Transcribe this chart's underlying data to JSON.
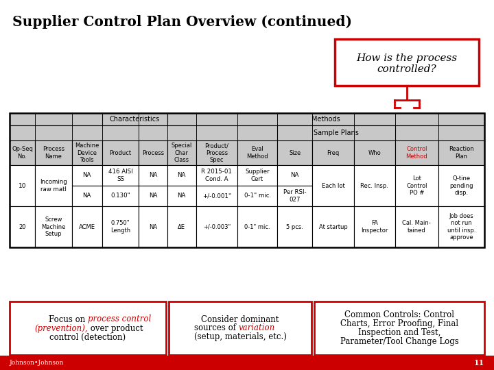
{
  "title": "Supplier Control Plan Overview (continued)",
  "bg_color": "#ffffff",
  "red_color": "#cc0000",
  "table_bg": "#c8c8c8",
  "white": "#ffffff",
  "black": "#000000",
  "callout_text_line1": "How is the process",
  "callout_text_line2": "controlled?",
  "footer_text": "Johnson•Johnson",
  "page_number": "11",
  "bottom_bar_color": "#cc0000",
  "header_row1_chars": "Characteristics",
  "header_row1_methods": "Methods",
  "header_row2_sample": "Sample Plans",
  "col_headers": [
    "Op-Seq\nNo.",
    "Process\nName",
    "Machine\nDevice\nTools",
    "Product",
    "Process",
    "Special\nChar\nClass",
    "Product/\nProcess\nSpec",
    "Eval\nMethod",
    "Size",
    "Freq",
    "Who",
    "Control\nMethod",
    "Reaction\nPlan"
  ],
  "col_control_idx": 11,
  "row_op10_col01": [
    "10",
    "Incoming\nraw matl"
  ],
  "row_op10_subA": [
    "NA",
    "416 AISI\nSS",
    "NA",
    "NA",
    "R 2015-01\nCond. A",
    "Supplier\nCert"
  ],
  "row_op10_subB": [
    "NA",
    "0.130\"",
    "NA",
    "NA",
    "+/-0.001\"",
    "0-1\" mic."
  ],
  "row_op10_right": [
    "NA",
    "Each lot",
    "Rec. Insp.",
    "Lot\nControl\nPO #",
    "Q-tine\npending\ndisp."
  ],
  "row_op10_sizeB": "Per RSI-\n027",
  "row_op20": [
    "20",
    "Screw\nMachine\nSetup",
    "ACME",
    "0.750\"\nLength",
    "NA",
    "ΔE",
    "+/-0.003\"",
    "0-1\" mic.",
    "5 pcs.",
    "At startup",
    "FA\nInspector",
    "Cal. Main-\ntained",
    "Job does\nnot run\nuntil insp.\napprove"
  ],
  "box1_normal1": "Focus on ",
  "box1_red1": "process control",
  "box1_red2": "(prevention),",
  "box1_normal2": " over product",
  "box1_normal3": "control (detection)",
  "box2_line1": "Consider dominant",
  "box2_normal": "sources of ",
  "box2_red": "variation",
  "box2_line3": "(setup, materials, etc.)",
  "box3_lines": [
    "Common Controls: Control",
    "Charts, Error Proofing, Final",
    "Inspection and Test,",
    "Parameter/Tool Change Logs"
  ]
}
